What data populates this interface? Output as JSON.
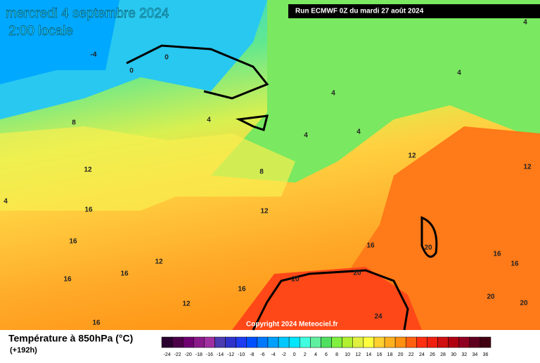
{
  "header": {
    "title": "mercredi 4 septembre 2024",
    "subtitle": "2:00 locale",
    "run": "Run ECMWF 0Z du mardi 27 août 2024",
    "copyright": "Copyright 2024 Meteociel.fr"
  },
  "legend": {
    "title": "Température à 850hPa (°C)",
    "lead_time": "(+192h)"
  },
  "colorbar": {
    "ticks": [
      -24,
      -22,
      -20,
      -18,
      -16,
      -14,
      -12,
      -10,
      -8,
      -6,
      -4,
      -2,
      0,
      2,
      4,
      6,
      8,
      10,
      12,
      14,
      16,
      18,
      20,
      22,
      24,
      26,
      28,
      30,
      32,
      34,
      36
    ],
    "colors": [
      "#2b0030",
      "#4b0048",
      "#6e0070",
      "#8a1a8a",
      "#a030a0",
      "#4d3bb0",
      "#2f33cc",
      "#1e3cf0",
      "#0050ff",
      "#0078ff",
      "#00a0ff",
      "#00c8ff",
      "#00e6ff",
      "#40ffe0",
      "#60f0a0",
      "#50e060",
      "#80f040",
      "#b0f030",
      "#e0f040",
      "#ffff40",
      "#ffd030",
      "#ffb020",
      "#ff9010",
      "#ff6010",
      "#ff3010",
      "#f02010",
      "#d01010",
      "#b00010",
      "#900020",
      "#600020",
      "#400010"
    ]
  },
  "isotherms": [
    -4,
    0,
    0,
    4,
    4,
    4,
    4,
    4,
    4,
    4,
    8,
    8,
    12,
    12,
    12,
    12,
    12,
    12,
    16,
    16,
    16,
    16,
    16,
    16,
    16,
    16,
    16,
    20,
    20,
    20,
    20,
    20,
    24
  ]
}
